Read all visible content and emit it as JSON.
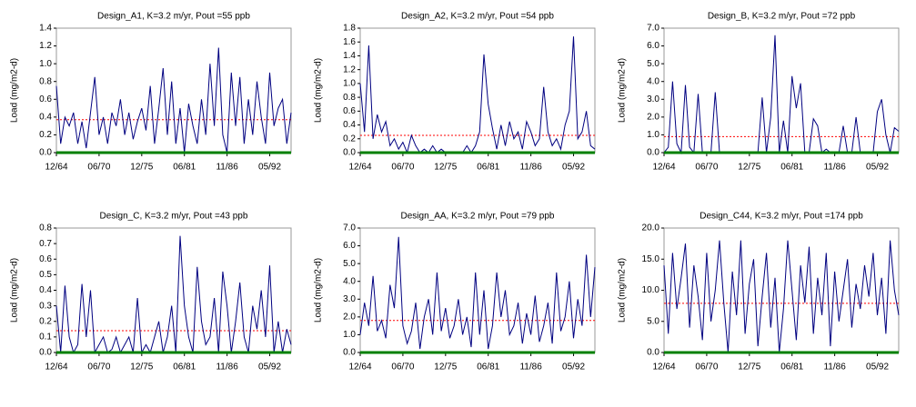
{
  "chart_data": [
    {
      "type": "line",
      "title": "Design_A1, K=3.2 m/yr,  Pout =55 ppb",
      "y_label": "Load (mg/m2-d)",
      "categories": [
        "12/64",
        null,
        null,
        null,
        null,
        null,
        null,
        null,
        null,
        null,
        "06/70",
        null,
        null,
        null,
        null,
        null,
        null,
        null,
        null,
        null,
        "12/75",
        null,
        null,
        null,
        null,
        null,
        null,
        null,
        null,
        null,
        "06/81",
        null,
        null,
        null,
        null,
        null,
        null,
        null,
        null,
        null,
        "11/86",
        null,
        null,
        null,
        null,
        null,
        null,
        null,
        null,
        null,
        "05/92",
        null,
        null,
        null,
        null,
        null
      ],
      "series": [
        {
          "color": "#000080",
          "values": [
            0.75,
            0.1,
            0.4,
            0.3,
            0.45,
            0.1,
            0.35,
            0.05,
            0.45,
            0.85,
            0.2,
            0.4,
            0.1,
            0.45,
            0.3,
            0.6,
            0.2,
            0.45,
            0.15,
            0.35,
            0.5,
            0.25,
            0.75,
            0.1,
            0.5,
            0.95,
            0.2,
            0.8,
            0.1,
            0.5,
            0.0,
            0.55,
            0.3,
            0.1,
            0.6,
            0.2,
            1.0,
            0.3,
            1.18,
            0.2,
            0.0,
            0.9,
            0.3,
            0.85,
            0.1,
            0.6,
            0.2,
            0.8,
            0.4,
            0.1,
            0.9,
            0.3,
            0.5,
            0.6,
            0.1,
            0.45
          ]
        }
      ],
      "mean_line": {
        "value": 0.37,
        "color": "#ff0000"
      },
      "ylim": [
        0,
        1.4
      ],
      "yticks": [
        {
          "value": 0,
          "label": "0.0"
        },
        0.2,
        0.4,
        0.6,
        0.8,
        {
          "value": 1,
          "label": "1.0"
        },
        1.2,
        1.4
      ]
    },
    {
      "type": "line",
      "title": "Design_A2, K=3.2 m/yr,  Pout =54 ppb",
      "y_label": "Load (mg/m2-d)",
      "categories": [
        "12/64",
        null,
        null,
        null,
        null,
        null,
        null,
        null,
        null,
        null,
        "06/70",
        null,
        null,
        null,
        null,
        null,
        null,
        null,
        null,
        null,
        "12/75",
        null,
        null,
        null,
        null,
        null,
        null,
        null,
        null,
        null,
        "06/81",
        null,
        null,
        null,
        null,
        null,
        null,
        null,
        null,
        null,
        "11/86",
        null,
        null,
        null,
        null,
        null,
        null,
        null,
        null,
        null,
        "05/92",
        null,
        null,
        null,
        null,
        null
      ],
      "series": [
        {
          "color": "#000080",
          "values": [
            1.0,
            0.3,
            1.55,
            0.2,
            0.55,
            0.3,
            0.45,
            0.1,
            0.2,
            0.05,
            0.15,
            0.0,
            0.25,
            0.1,
            0.0,
            0.05,
            0.0,
            0.1,
            0.0,
            0.05,
            0.0,
            0.0,
            0.0,
            0.0,
            0.0,
            0.1,
            0.0,
            0.1,
            0.3,
            1.42,
            0.7,
            0.35,
            0.05,
            0.4,
            0.1,
            0.45,
            0.2,
            0.3,
            0.05,
            0.45,
            0.3,
            0.1,
            0.2,
            0.95,
            0.3,
            0.1,
            0.2,
            0.05,
            0.4,
            0.6,
            1.68,
            0.2,
            0.3,
            0.6,
            0.1,
            0.05
          ]
        }
      ],
      "mean_line": {
        "value": 0.25,
        "color": "#ff0000"
      },
      "ylim": [
        0,
        1.8
      ],
      "yticks": [
        {
          "value": 0,
          "label": "0.0"
        },
        0.2,
        0.4,
        0.6,
        0.8,
        {
          "value": 1,
          "label": "1.0"
        },
        1.2,
        1.4,
        1.6,
        1.8
      ]
    },
    {
      "type": "line",
      "title": "Design_B, K=3.2 m/yr,  Pout =72 ppb",
      "y_label": "Load (mg/m2-d)",
      "categories": [
        "12/64",
        null,
        null,
        null,
        null,
        null,
        null,
        null,
        null,
        null,
        "06/70",
        null,
        null,
        null,
        null,
        null,
        null,
        null,
        null,
        null,
        "12/75",
        null,
        null,
        null,
        null,
        null,
        null,
        null,
        null,
        null,
        "06/81",
        null,
        null,
        null,
        null,
        null,
        null,
        null,
        null,
        null,
        "11/86",
        null,
        null,
        null,
        null,
        null,
        null,
        null,
        null,
        null,
        "05/92",
        null,
        null,
        null,
        null,
        null
      ],
      "series": [
        {
          "color": "#000080",
          "values": [
            0.0,
            0.3,
            4.0,
            0.5,
            0.0,
            3.8,
            0.3,
            0.0,
            3.3,
            0.0,
            0.0,
            0.0,
            3.4,
            0.0,
            0.0,
            0.0,
            0.0,
            0.0,
            0.0,
            0.0,
            0.0,
            0.0,
            0.0,
            3.1,
            0.0,
            2.0,
            6.6,
            0.0,
            1.8,
            0.0,
            4.3,
            2.5,
            3.9,
            0.0,
            0.0,
            1.9,
            1.5,
            0.0,
            0.2,
            0.0,
            0.0,
            0.0,
            1.5,
            0.0,
            0.0,
            2.0,
            0.0,
            0.0,
            0.0,
            0.0,
            2.3,
            3.0,
            1.0,
            0.0,
            1.4,
            1.2
          ]
        }
      ],
      "mean_line": {
        "value": 0.9,
        "color": "#ff0000"
      },
      "ylim": [
        0,
        7
      ],
      "yticks": [
        {
          "value": 0,
          "label": "0.0"
        },
        {
          "value": 1,
          "label": "1.0"
        },
        {
          "value": 2,
          "label": "2.0"
        },
        {
          "value": 3,
          "label": "3.0"
        },
        {
          "value": 4,
          "label": "4.0"
        },
        {
          "value": 5,
          "label": "5.0"
        },
        {
          "value": 6,
          "label": "6.0"
        },
        {
          "value": 7,
          "label": "7.0"
        }
      ]
    },
    {
      "type": "line",
      "title": "Design_C, K=3.2 m/yr,  Pout =43 ppb",
      "y_label": "Load (mg/m2-d)",
      "categories": [
        "12/64",
        null,
        null,
        null,
        null,
        null,
        null,
        null,
        null,
        null,
        "06/70",
        null,
        null,
        null,
        null,
        null,
        null,
        null,
        null,
        null,
        "12/75",
        null,
        null,
        null,
        null,
        null,
        null,
        null,
        null,
        null,
        "06/81",
        null,
        null,
        null,
        null,
        null,
        null,
        null,
        null,
        null,
        "11/86",
        null,
        null,
        null,
        null,
        null,
        null,
        null,
        null,
        null,
        "05/92",
        null,
        null,
        null,
        null,
        null
      ],
      "series": [
        {
          "color": "#000080",
          "values": [
            0.3,
            0.0,
            0.43,
            0.1,
            0.0,
            0.05,
            0.44,
            0.1,
            0.4,
            0.0,
            0.05,
            0.1,
            0.0,
            0.02,
            0.1,
            0.0,
            0.05,
            0.1,
            0.0,
            0.35,
            0.0,
            0.05,
            0.0,
            0.1,
            0.2,
            0.0,
            0.1,
            0.3,
            0.0,
            0.75,
            0.3,
            0.1,
            0.0,
            0.55,
            0.2,
            0.05,
            0.1,
            0.35,
            0.0,
            0.52,
            0.3,
            0.0,
            0.2,
            0.45,
            0.1,
            0.0,
            0.3,
            0.15,
            0.4,
            0.1,
            0.56,
            0.0,
            0.2,
            0.0,
            0.15,
            0.05
          ]
        }
      ],
      "mean_line": {
        "value": 0.14,
        "color": "#ff0000"
      },
      "ylim": [
        0,
        0.8
      ],
      "yticks": [
        {
          "value": 0,
          "label": "0.0"
        },
        0.1,
        0.2,
        0.3,
        0.4,
        0.5,
        0.6,
        0.7,
        0.8
      ]
    },
    {
      "type": "line",
      "title": "Design_AA, K=3.2 m/yr,  Pout =79 ppb",
      "y_label": "Load (mg/m2-d)",
      "categories": [
        "12/64",
        null,
        null,
        null,
        null,
        null,
        null,
        null,
        null,
        null,
        "06/70",
        null,
        null,
        null,
        null,
        null,
        null,
        null,
        null,
        null,
        "12/75",
        null,
        null,
        null,
        null,
        null,
        null,
        null,
        null,
        null,
        "06/81",
        null,
        null,
        null,
        null,
        null,
        null,
        null,
        null,
        null,
        "11/86",
        null,
        null,
        null,
        null,
        null,
        null,
        null,
        null,
        null,
        "05/92",
        null,
        null,
        null,
        null,
        null
      ],
      "series": [
        {
          "color": "#000080",
          "values": [
            1.0,
            2.8,
            1.5,
            4.3,
            1.2,
            1.8,
            0.8,
            3.8,
            2.5,
            6.5,
            1.5,
            0.5,
            1.2,
            2.8,
            0.2,
            2.0,
            3.0,
            1.0,
            4.5,
            1.2,
            2.5,
            0.8,
            1.5,
            3.0,
            1.0,
            2.0,
            0.3,
            4.5,
            1.0,
            3.5,
            0.2,
            1.5,
            4.5,
            2.0,
            3.5,
            1.0,
            1.5,
            2.8,
            0.5,
            2.2,
            1.0,
            3.2,
            0.6,
            1.5,
            2.8,
            0.5,
            4.5,
            1.2,
            2.0,
            4.0,
            0.8,
            3.0,
            1.5,
            5.5,
            2.0,
            4.8
          ]
        }
      ],
      "mean_line": {
        "value": 1.8,
        "color": "#ff0000"
      },
      "ylim": [
        0,
        7
      ],
      "yticks": [
        {
          "value": 0,
          "label": "0.0"
        },
        {
          "value": 1,
          "label": "1.0"
        },
        {
          "value": 2,
          "label": "2.0"
        },
        {
          "value": 3,
          "label": "3.0"
        },
        {
          "value": 4,
          "label": "4.0"
        },
        {
          "value": 5,
          "label": "5.0"
        },
        {
          "value": 6,
          "label": "6.0"
        },
        {
          "value": 7,
          "label": "7.0"
        }
      ]
    },
    {
      "type": "line",
      "title": "Design_C44, K=3.2 m/yr,  Pout =174 ppb",
      "y_label": "Load (mg/m2-d)",
      "categories": [
        "12/64",
        null,
        null,
        null,
        null,
        null,
        null,
        null,
        null,
        null,
        "06/70",
        null,
        null,
        null,
        null,
        null,
        null,
        null,
        null,
        null,
        "12/75",
        null,
        null,
        null,
        null,
        null,
        null,
        null,
        null,
        null,
        "06/81",
        null,
        null,
        null,
        null,
        null,
        null,
        null,
        null,
        null,
        "11/86",
        null,
        null,
        null,
        null,
        null,
        null,
        null,
        null,
        null,
        "05/92",
        null,
        null,
        null,
        null,
        null
      ],
      "series": [
        {
          "color": "#000080",
          "values": [
            14.0,
            3.0,
            16.0,
            7.0,
            12.0,
            17.5,
            4.0,
            14.0,
            9.0,
            2.0,
            16.0,
            5.0,
            10.0,
            18.0,
            8.0,
            0.0,
            13.0,
            6.0,
            18.0,
            3.0,
            11.0,
            15.0,
            1.0,
            9.0,
            16.0,
            4.0,
            12.0,
            0.0,
            7.0,
            18.0,
            10.0,
            2.0,
            14.0,
            8.0,
            17.0,
            3.0,
            12.0,
            6.0,
            16.0,
            1.0,
            13.0,
            5.0,
            10.0,
            15.0,
            4.0,
            11.0,
            7.0,
            14.0,
            9.0,
            16.0,
            6.0,
            12.0,
            3.0,
            18.0,
            10.0,
            6.0
          ]
        }
      ],
      "mean_line": {
        "value": 7.9,
        "color": "#ff0000"
      },
      "ylim": [
        0,
        20
      ],
      "yticks": [
        {
          "value": 0,
          "label": "0.0"
        },
        {
          "value": 5,
          "label": "5.0"
        },
        {
          "value": 10,
          "label": "10.0"
        },
        {
          "value": 15,
          "label": "15.0"
        },
        {
          "value": 20,
          "label": "20.0"
        }
      ]
    }
  ]
}
